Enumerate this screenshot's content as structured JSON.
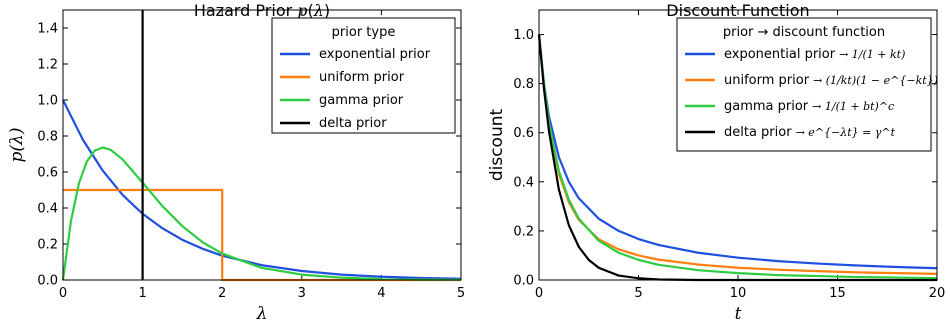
{
  "chart_data": [
    {
      "type": "line",
      "title": "Hazard Prior p(λ)",
      "xlabel": "λ",
      "ylabel": "p(λ)",
      "xlim": [
        0,
        5
      ],
      "ylim": [
        0,
        1.5
      ],
      "xticks": [
        "0",
        "1",
        "2",
        "3",
        "4",
        "5"
      ],
      "yticks": [
        "0.0",
        "0.2",
        "0.4",
        "0.6",
        "0.8",
        "1.0",
        "1.2",
        "1.4"
      ],
      "legend": {
        "title": "prior type",
        "placement": "top-right"
      },
      "series": [
        {
          "name": "exponential prior",
          "color": "#1f4fe0",
          "x": [
            0,
            0.25,
            0.5,
            0.75,
            1,
            1.25,
            1.5,
            1.75,
            2,
            2.5,
            3,
            3.5,
            4,
            4.5,
            5
          ],
          "y": [
            1.0,
            0.779,
            0.607,
            0.472,
            0.368,
            0.287,
            0.223,
            0.174,
            0.135,
            0.082,
            0.05,
            0.03,
            0.018,
            0.011,
            0.007
          ]
        },
        {
          "name": "uniform prior",
          "color": "#ff7f0e",
          "x": [
            0,
            2,
            2,
            5
          ],
          "y": [
            0.5,
            0.5,
            0,
            0
          ]
        },
        {
          "name": "gamma prior",
          "color": "#2ecc40",
          "x": [
            0,
            0.1,
            0.2,
            0.3,
            0.4,
            0.5,
            0.6,
            0.75,
            1,
            1.25,
            1.5,
            1.75,
            2,
            2.5,
            3,
            3.5,
            4,
            4.5,
            5
          ],
          "y": [
            0,
            0.328,
            0.536,
            0.659,
            0.719,
            0.736,
            0.723,
            0.669,
            0.541,
            0.41,
            0.299,
            0.211,
            0.147,
            0.067,
            0.03,
            0.013,
            0.005,
            0.002,
            0.001
          ]
        },
        {
          "name": "delta prior",
          "color": "#000000",
          "x": [
            1,
            1
          ],
          "y": [
            0,
            1.5
          ]
        }
      ]
    },
    {
      "type": "line",
      "title": "Discount Function",
      "xlabel": "t",
      "ylabel": "discount",
      "xlim": [
        0,
        20
      ],
      "ylim": [
        0,
        1.1
      ],
      "xticks": [
        "0",
        "5",
        "10",
        "15",
        "20"
      ],
      "yticks": [
        "0.0",
        "0.2",
        "0.4",
        "0.6",
        "0.8",
        "1.0"
      ],
      "legend": {
        "title": "prior → discount function",
        "placement": "top-right"
      },
      "series": [
        {
          "name": "exponential prior",
          "formula": "→ 1/(1 + kt)",
          "color": "#1f4fe0",
          "x": [
            0,
            0.25,
            0.5,
            1,
            1.5,
            2,
            3,
            4,
            5,
            6,
            8,
            10,
            12,
            14,
            16,
            18,
            20
          ],
          "y": [
            1.0,
            0.8,
            0.667,
            0.5,
            0.4,
            0.333,
            0.25,
            0.2,
            0.167,
            0.143,
            0.111,
            0.091,
            0.077,
            0.067,
            0.059,
            0.053,
            0.048
          ]
        },
        {
          "name": "uniform prior",
          "formula": "→ (1/kt)(1 − e^{−kt})",
          "color": "#ff7f0e",
          "x": [
            0,
            0.25,
            0.5,
            1,
            1.5,
            2,
            3,
            4,
            5,
            6,
            8,
            10,
            12,
            14,
            16,
            18,
            20
          ],
          "y": [
            1.0,
            0.787,
            0.632,
            0.432,
            0.317,
            0.245,
            0.166,
            0.125,
            0.1,
            0.083,
            0.063,
            0.05,
            0.042,
            0.036,
            0.031,
            0.028,
            0.025
          ]
        },
        {
          "name": "gamma prior",
          "formula": "→ 1/(1 + bt)^c",
          "color": "#2ecc40",
          "x": [
            0,
            0.25,
            0.5,
            1,
            1.5,
            2,
            3,
            4,
            5,
            6,
            8,
            10,
            12,
            14,
            16,
            18,
            20
          ],
          "y": [
            1.0,
            0.8,
            0.64,
            0.444,
            0.327,
            0.25,
            0.16,
            0.111,
            0.082,
            0.062,
            0.04,
            0.028,
            0.02,
            0.016,
            0.012,
            0.01,
            0.008
          ]
        },
        {
          "name": "delta prior",
          "formula": "→ e^{−λt} = γ^t",
          "color": "#000000",
          "x": [
            0,
            0.25,
            0.5,
            1,
            1.5,
            2,
            2.5,
            3,
            4,
            5,
            6,
            8,
            10,
            15,
            20
          ],
          "y": [
            1.0,
            0.779,
            0.607,
            0.368,
            0.223,
            0.135,
            0.082,
            0.05,
            0.018,
            0.007,
            0.002,
            0.0,
            0.0,
            0.0,
            0.0
          ]
        }
      ]
    }
  ]
}
